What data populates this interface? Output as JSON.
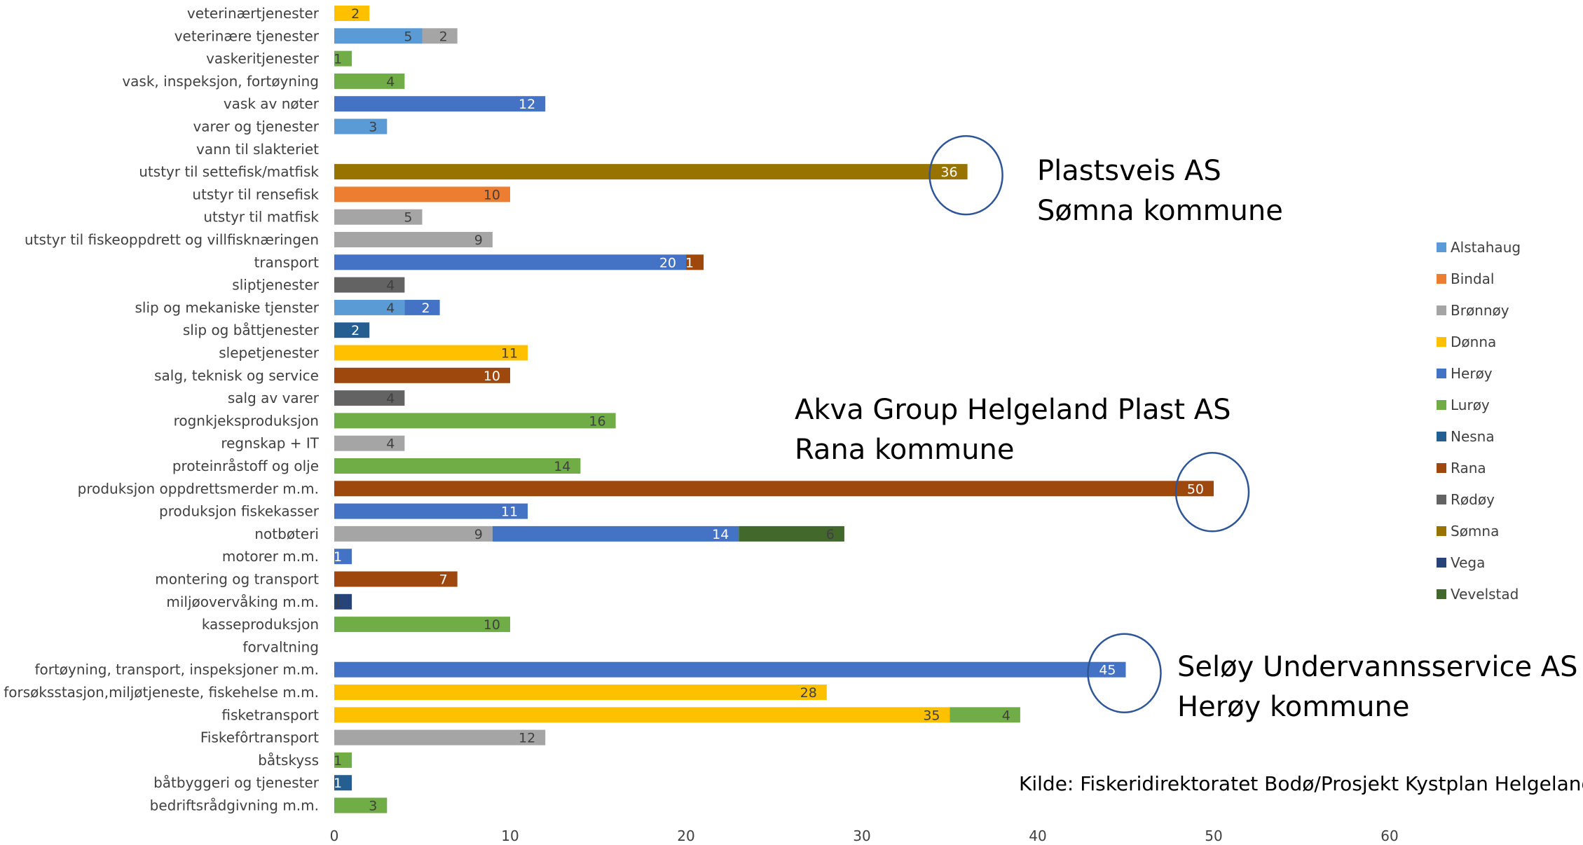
{
  "chart_data": {
    "type": "bar",
    "orientation": "horizontal",
    "stacked": true,
    "xlim": [
      0,
      60
    ],
    "x_ticks": [
      0,
      10,
      20,
      30,
      40,
      50,
      60
    ],
    "legend_position": "right",
    "categories": [
      "veterinærtjenester",
      "veterinære tjenester",
      "vaskeritjenester",
      "vask, inspeksjon, fortøyning",
      "vask av nøter",
      "varer og tjenester",
      "vann til slakteriet",
      "utstyr til settefisk/matfisk",
      "utstyr til rensefisk",
      "utstyr til matfisk",
      "utstyr til fiskeoppdrett og villfisknæringen",
      "transport",
      "sliptjenester",
      "slip og mekaniske tjenster",
      "slip og båttjenester",
      "slepetjenester",
      "salg, teknisk og service",
      "salg av varer",
      "rognkjeksproduksjon",
      "regnskap + IT",
      "proteinråstoff og olje",
      "produksjon oppdrettsmerder m.m.",
      "produksjon fiskekasser",
      "notbøteri",
      "motorer m.m.",
      "montering og transport",
      "miljøovervåking m.m.",
      "kasseproduksjon",
      "forvaltning",
      "fortøyning, transport, inspeksjoner m.m.",
      "forsøksstasjon,miljøtjeneste, fiskehelse m.m.",
      "fisketransport",
      "Fiskefôrtransport",
      "båtskyss",
      "båtbyggeri og tjenester",
      "bedriftsrådgivning m.m."
    ],
    "series": [
      {
        "name": "Alstahaug",
        "color": "#5B9BD5",
        "label_color": "#404040",
        "values": [
          0,
          5,
          0,
          0,
          0,
          3,
          0,
          0,
          0,
          0,
          0,
          0,
          0,
          4,
          0,
          0,
          0,
          0,
          0,
          0,
          0,
          0,
          0,
          0,
          0,
          0,
          0,
          0,
          0,
          0,
          0,
          0,
          0,
          0,
          0,
          0
        ]
      },
      {
        "name": "Bindal",
        "color": "#ED7D31",
        "label_color": "#404040",
        "values": [
          0,
          0,
          0,
          0,
          0,
          0,
          0,
          0,
          10,
          0,
          0,
          0,
          0,
          0,
          0,
          0,
          0,
          0,
          0,
          0,
          0,
          0,
          0,
          0,
          0,
          0,
          0,
          0,
          0,
          0,
          0,
          0,
          0,
          0,
          0,
          0
        ]
      },
      {
        "name": "Brønnøy",
        "color": "#A5A5A5",
        "label_color": "#404040",
        "values": [
          0,
          2,
          0,
          0,
          0,
          0,
          0,
          0,
          0,
          5,
          9,
          0,
          0,
          0,
          0,
          0,
          0,
          0,
          0,
          4,
          0,
          0,
          0,
          9,
          0,
          0,
          0,
          0,
          0,
          0,
          0,
          0,
          12,
          0,
          0,
          0
        ]
      },
      {
        "name": "Dønna",
        "color": "#FFC000",
        "label_color": "#404040",
        "values": [
          2,
          0,
          0,
          0,
          0,
          0,
          0,
          0,
          0,
          0,
          0,
          0,
          0,
          0,
          0,
          11,
          0,
          0,
          0,
          0,
          0,
          0,
          0,
          0,
          0,
          0,
          0,
          0,
          0,
          0,
          28,
          35,
          0,
          0,
          0,
          0
        ]
      },
      {
        "name": "Herøy",
        "color": "#4472C4",
        "label_color": "#ffffff",
        "values": [
          0,
          0,
          0,
          0,
          12,
          0,
          0,
          0,
          0,
          0,
          0,
          20,
          0,
          2,
          0,
          0,
          0,
          0,
          0,
          0,
          0,
          0,
          11,
          14,
          1,
          0,
          0,
          0,
          0,
          45,
          0,
          0,
          0,
          0,
          0,
          0
        ]
      },
      {
        "name": "Lurøy",
        "color": "#70AD47",
        "label_color": "#404040",
        "values": [
          0,
          0,
          1,
          4,
          0,
          0,
          0,
          0,
          0,
          0,
          0,
          0,
          0,
          0,
          0,
          0,
          0,
          0,
          16,
          0,
          14,
          0,
          0,
          0,
          0,
          0,
          0,
          10,
          0,
          0,
          0,
          4,
          0,
          1,
          0,
          3
        ]
      },
      {
        "name": "Nesna",
        "color": "#255E91",
        "label_color": "#ffffff",
        "values": [
          0,
          0,
          0,
          0,
          0,
          0,
          0,
          0,
          0,
          0,
          0,
          0,
          0,
          0,
          2,
          0,
          0,
          0,
          0,
          0,
          0,
          0,
          0,
          0,
          0,
          0,
          0,
          0,
          0,
          0,
          0,
          0,
          0,
          0,
          1,
          0
        ]
      },
      {
        "name": "Rana",
        "color": "#9E480E",
        "label_color": "#ffffff",
        "values": [
          0,
          0,
          0,
          0,
          0,
          0,
          0,
          0,
          0,
          0,
          0,
          1,
          0,
          0,
          0,
          0,
          10,
          0,
          0,
          0,
          0,
          50,
          0,
          0,
          0,
          7,
          0,
          0,
          0,
          0,
          0,
          0,
          0,
          0,
          0,
          0
        ]
      },
      {
        "name": "Rødøy",
        "color": "#636363",
        "label_color": "#404040",
        "values": [
          0,
          0,
          0,
          0,
          0,
          0,
          0,
          0,
          0,
          0,
          0,
          0,
          4,
          0,
          0,
          0,
          0,
          4,
          0,
          0,
          0,
          0,
          0,
          0,
          0,
          0,
          0,
          0,
          0,
          0,
          0,
          0,
          0,
          0,
          0,
          0
        ]
      },
      {
        "name": "Sømna",
        "color": "#997300",
        "label_color": "#ffffff",
        "values": [
          0,
          0,
          0,
          0,
          0,
          0,
          0,
          36,
          0,
          0,
          0,
          0,
          0,
          0,
          0,
          0,
          0,
          0,
          0,
          0,
          0,
          0,
          0,
          0,
          0,
          0,
          0,
          0,
          0,
          0,
          0,
          0,
          0,
          0,
          0,
          0
        ]
      },
      {
        "name": "Vega",
        "color": "#264478",
        "label_color": "#404040",
        "values": [
          0,
          0,
          0,
          0,
          0,
          0,
          0,
          0,
          0,
          0,
          0,
          0,
          0,
          0,
          0,
          0,
          0,
          0,
          0,
          0,
          0,
          0,
          0,
          0,
          0,
          0,
          1,
          0,
          0,
          0,
          0,
          0,
          0,
          0,
          0,
          0
        ]
      },
      {
        "name": "Vevelstad",
        "color": "#43682B",
        "label_color": "#404040",
        "values": [
          0,
          0,
          0,
          0,
          0,
          0,
          0,
          0,
          0,
          0,
          0,
          0,
          0,
          0,
          0,
          0,
          0,
          0,
          0,
          0,
          0,
          0,
          0,
          6,
          0,
          0,
          0,
          0,
          0,
          0,
          0,
          0,
          0,
          0,
          0,
          0
        ]
      }
    ],
    "annotations": [
      {
        "lines": [
          "Plastsveis AS",
          "Sømna kommune"
        ],
        "highlight_category": "utstyr til settefisk/matfisk",
        "highlight_value": 36
      },
      {
        "lines": [
          "Akva Group Helgeland Plast AS",
          "Rana kommune"
        ],
        "highlight_category": "produksjon oppdrettsmerder m.m.",
        "highlight_value": 50
      },
      {
        "lines": [
          "Seløy Undervannsservice AS",
          "Herøy kommune"
        ],
        "highlight_category": "fortøyning, transport, inspeksjoner m.m.",
        "highlight_value": 45
      }
    ],
    "source": "Kilde: Fiskeridirektoratet Bodø/Prosjekt Kystplan Helgeland"
  }
}
